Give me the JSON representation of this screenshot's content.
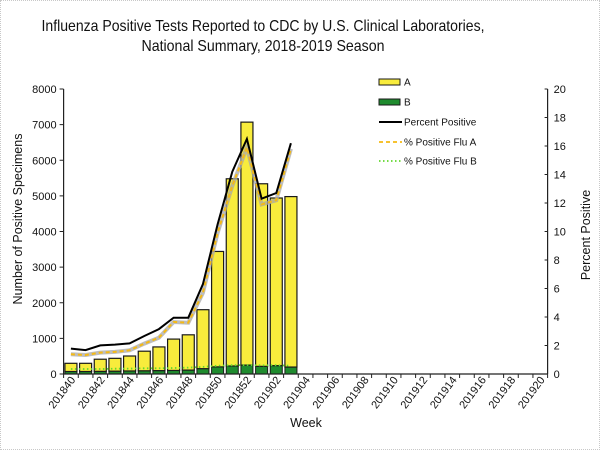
{
  "chart_data": {
    "type": "bar",
    "title": "Influenza Positive Tests Reported to CDC by U.S. Clinical Laboratories,",
    "subtitle": "National Summary,  2018-2019 Season",
    "xlabel": "Week",
    "ylabel": "Number of Positive Specimens",
    "y2label": "Percent Positive",
    "ylim": [
      0,
      8000
    ],
    "y2lim": [
      0,
      20
    ],
    "y_ticks": [
      "0",
      "1000",
      "2000",
      "3000",
      "4000",
      "5000",
      "6000",
      "7000",
      "8000"
    ],
    "y2_ticks": [
      "0",
      "2",
      "4",
      "6",
      "8",
      "10",
      "12",
      "14",
      "16",
      "18",
      "20"
    ],
    "grid": false,
    "legend_position": "top-center",
    "categories": [
      "201840",
      "201841",
      "201842",
      "201843",
      "201844",
      "201845",
      "201846",
      "201847",
      "201848",
      "201849",
      "201850",
      "201851",
      "201852",
      "201901",
      "201902",
      "201903",
      "201904",
      "201905",
      "201906",
      "201907",
      "201908",
      "201909",
      "201910",
      "201911",
      "201912",
      "201913",
      "201914",
      "201915",
      "201916",
      "201917",
      "201918",
      "201919",
      "201920"
    ],
    "x_tick_labels": [
      "201840",
      "201842",
      "201844",
      "201846",
      "201848",
      "201850",
      "201852",
      "201902",
      "201904",
      "201906",
      "201908",
      "201910",
      "201912",
      "201914",
      "201916",
      "201918",
      "201920"
    ],
    "series": [
      {
        "name": "A",
        "kind": "stacked-bar",
        "axis": "left",
        "values": [
          230,
          230,
          340,
          360,
          420,
          550,
          665,
          880,
          990,
          1655,
          3240,
          5255,
          6820,
          5125,
          4705,
          4785,
          null,
          null,
          null,
          null,
          null,
          null,
          null,
          null,
          null,
          null,
          null,
          null,
          null,
          null,
          null,
          null,
          null
        ]
      },
      {
        "name": "B",
        "kind": "stacked-bar",
        "axis": "left",
        "values": [
          70,
          70,
          75,
          80,
          85,
          90,
          95,
          100,
          110,
          150,
          200,
          225,
          250,
          215,
          235,
          195,
          null,
          null,
          null,
          null,
          null,
          null,
          null,
          null,
          null,
          null,
          null,
          null,
          null,
          null,
          null,
          null,
          null
        ]
      },
      {
        "name": "Percent Positive",
        "kind": "line",
        "axis": "right",
        "values": [
          1.78,
          1.68,
          2.01,
          2.06,
          2.15,
          2.67,
          3.15,
          3.95,
          3.95,
          6.3,
          10.5,
          14.2,
          16.5,
          12.3,
          12.7,
          16.2,
          null,
          null,
          null,
          null,
          null,
          null,
          null,
          null,
          null,
          null,
          null,
          null,
          null,
          null,
          null,
          null,
          null
        ]
      },
      {
        "name": "% Positive Flu A",
        "kind": "line",
        "axis": "right",
        "values": [
          1.38,
          1.33,
          1.5,
          1.55,
          1.66,
          2.13,
          2.55,
          3.65,
          3.6,
          5.7,
          9.9,
          13.2,
          15.9,
          11.9,
          12.2,
          15.8,
          null,
          null,
          null,
          null,
          null,
          null,
          null,
          null,
          null,
          null,
          null,
          null,
          null,
          null,
          null,
          null,
          null
        ]
      },
      {
        "name": "% Positive Flu B",
        "kind": "line",
        "axis": "right",
        "values": [
          0.35,
          0.35,
          0.35,
          0.37,
          0.38,
          0.4,
          0.4,
          0.42,
          0.45,
          0.5,
          0.58,
          0.62,
          0.63,
          0.6,
          0.62,
          0.58,
          null,
          null,
          null,
          null,
          null,
          null,
          null,
          null,
          null,
          null,
          null,
          null,
          null,
          null,
          null,
          null,
          null
        ]
      }
    ],
    "legend": [
      "A",
      "B",
      "Percent Positive",
      "% Positive Flu A",
      "% Positive Flu B"
    ],
    "colors": {
      "A": "#F8EC3C",
      "B": "#1F8B2E",
      "percent_positive": "#000000",
      "flu_a": "#F5BA14",
      "flu_a_shadow": "#A8A8A8",
      "flu_b": "#62D82E",
      "bar_outline": "#1a1a1a"
    }
  }
}
